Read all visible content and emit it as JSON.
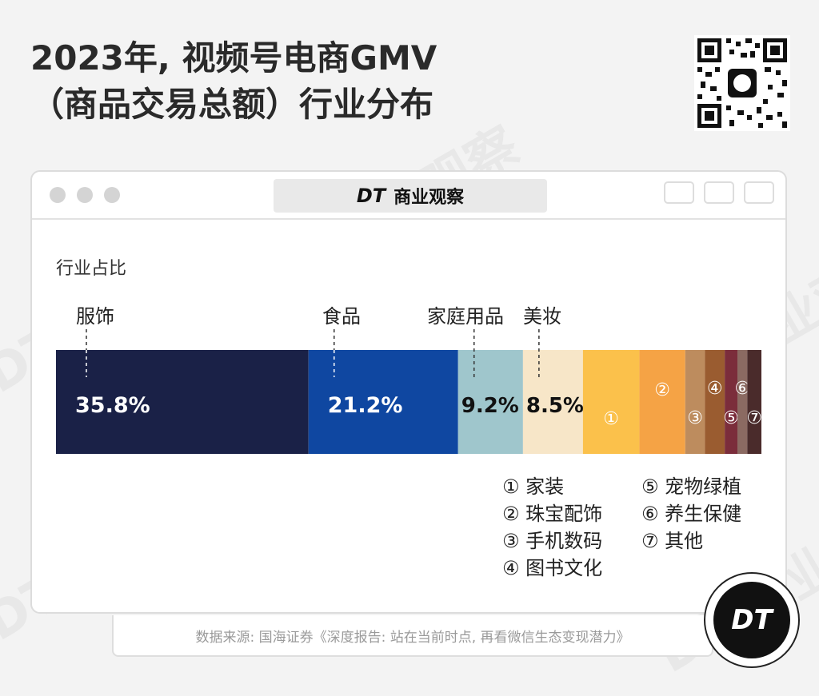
{
  "title_line1": "2023年, 视频号电商GMV",
  "title_line2": "（商品交易总额）行业分布",
  "window": {
    "brand_logo": "DT",
    "brand_name": "商业观察"
  },
  "chart_data": {
    "type": "bar",
    "orientation": "horizontal-stacked-100",
    "ylabel": "行业占比",
    "categories": [
      "服饰",
      "食品",
      "家庭用品",
      "美妆",
      "家装",
      "珠宝配饰",
      "手机数码",
      "图书文化",
      "宠物绿植",
      "养生保健",
      "其他"
    ],
    "values": [
      35.8,
      21.2,
      9.2,
      8.5,
      8.0,
      6.5,
      2.8,
      2.8,
      1.8,
      1.4,
      2.0
    ],
    "data_labels": [
      "35.8%",
      "21.2%",
      "9.2%",
      "8.5%",
      "",
      "",
      "",
      "",
      "",
      "",
      ""
    ],
    "markers": [
      "",
      "",
      "",
      "",
      "①",
      "②",
      "③",
      "④",
      "⑤",
      "⑥",
      "⑦"
    ],
    "colors": [
      "#1a2147",
      "#0f47a1",
      "#9fc6cc",
      "#f7e6c8",
      "#fbc14b",
      "#f5a345",
      "#bd8c5e",
      "#9a5c30",
      "#7b2d3b",
      "#8b6a62",
      "#4a2b2b"
    ],
    "label_colors": [
      "#ffffff",
      "#ffffff",
      "#111111",
      "#111111",
      "#ffffff",
      "#ffffff",
      "#ffffff",
      "#ffffff",
      "#ffffff",
      "#ffffff",
      "#ffffff"
    ],
    "xlim": [
      0,
      100
    ],
    "grid": false,
    "legend": {
      "placement": "bottom-right",
      "column1": [
        "① 家装",
        "② 珠宝配饰",
        "③ 手机数码",
        "④ 图书文化"
      ],
      "column2": [
        "⑤ 宠物绿植",
        "⑥ 养生保健",
        "⑦ 其他"
      ]
    }
  },
  "footer": {
    "source": "数据来源: 国海证券《深度报告: 站在当前时点, 再看微信生态变现潜力》"
  },
  "badge": {
    "text": "DT"
  },
  "watermark": {
    "text": "DT 商业观察"
  },
  "icons": {
    "close": "close-icon",
    "minimize": "minimize-icon",
    "zoom": "zoom-icon",
    "record": "record-icon",
    "share": "share-icon",
    "copy": "copy-icon",
    "qr": "qr-code-icon"
  }
}
